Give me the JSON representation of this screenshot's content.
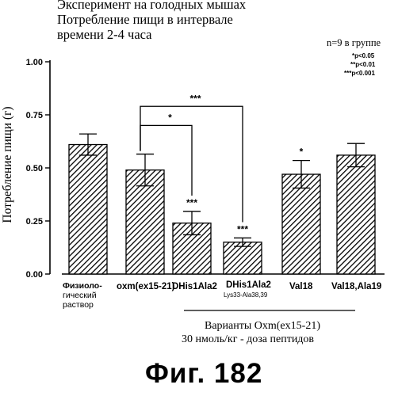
{
  "header": {
    "line1": "Эксперимент на голодных мышах",
    "line2": "Потребление пищи в интервале",
    "line3": "времени 2-4 часа"
  },
  "n_note": "n=9 в группе",
  "significance_legend": [
    "*p<0.05",
    "**p<0.01",
    "***p<0.001"
  ],
  "group_note": {
    "line1": "Варианты Oxm(ex15-21)",
    "line2": "30 нмоль/кг - доза пептидов"
  },
  "figure_label": "Фиг. 182",
  "chart_data": {
    "type": "bar",
    "ylabel": "Потребление пищи (г)",
    "ylim": [
      0,
      1.0
    ],
    "yticks": [
      "0.00",
      "0.25",
      "0.50",
      "0.75",
      "1.00"
    ],
    "categories": [
      "Физиоло-гический раствор",
      "oxm(ex15-21)",
      "DHis1Ala2",
      "DHis1Ala2 Lys33-Ala38,39",
      "Val18",
      "Val18,Ala19"
    ],
    "category_lines": [
      [
        "Физиоло-",
        "гический",
        "раствор"
      ],
      [
        "oxm(ex15-21)"
      ],
      [
        "DHis1Ala2"
      ],
      [
        "DHis1Ala2",
        "Lys33-Ala38,39"
      ],
      [
        "Val18"
      ],
      [
        "Val18,Ala19"
      ]
    ],
    "values": [
      0.61,
      0.49,
      0.24,
      0.15,
      0.47,
      0.56
    ],
    "errors": [
      0.05,
      0.075,
      0.055,
      0.02,
      0.065,
      0.055
    ],
    "bar_labels": [
      "",
      "",
      "***",
      "***",
      "*",
      ""
    ],
    "brackets": [
      {
        "from": 1,
        "to": 2,
        "label": "*"
      },
      {
        "from": 1,
        "to": 3,
        "label": "***"
      }
    ],
    "pattern": "diagonal-hatch",
    "grid": false,
    "legend": "none"
  }
}
